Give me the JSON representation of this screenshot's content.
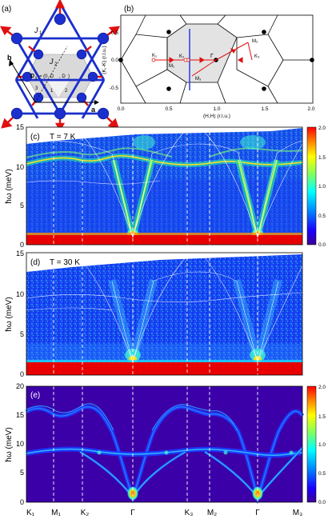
{
  "figure": {
    "a": {
      "label": "(a)",
      "j1": "J",
      "j1_sub": "1",
      "j2": "J",
      "j2_sub": "2",
      "d_ij": "D",
      "d_ij_sub": "ij",
      "d_vec": "= (0, D",
      "d_vec_tail": ", D",
      "d_vec_end": ")",
      "site_1": "1",
      "site_2": "2",
      "site_3": "3",
      "axis_a": "a",
      "axis_b": "b"
    },
    "b": {
      "label": "(b)",
      "xlabel": "(H,H) (r.l.u.)",
      "ylabel": "(K,-K) (r.l.u.)",
      "xticks": [
        "0.0",
        "0.5",
        "1.0",
        "1.5",
        "2.0"
      ],
      "yticks": [
        "0.5",
        "0.0",
        "-0.5"
      ],
      "points": [
        "K₁",
        "M₁",
        "K₂",
        "Γ",
        "M₂",
        "K₃",
        "M₃"
      ]
    },
    "c": {
      "label": "(c)",
      "temp": "T = 7 K",
      "ylabel": "ħω (meV)",
      "yticks": [
        "15",
        "10",
        "5",
        "0"
      ],
      "cbar_ticks": [
        "2.0",
        "1.5",
        "1.0",
        "0.5",
        "0.0"
      ]
    },
    "d": {
      "label": "(d)",
      "temp": "T = 30 K",
      "ylabel": "ħω (meV)",
      "yticks": [
        "15",
        "10",
        "5",
        "0"
      ]
    },
    "e": {
      "label": "(e)",
      "ylabel": "ħω (meV)",
      "yticks": [
        "20",
        "15",
        "10",
        "5",
        "0"
      ],
      "cbar_ticks": [
        "2.0",
        "1.5",
        "1.0",
        "0.5",
        "0.0"
      ],
      "xticks": [
        "K₁",
        "M₁",
        "K₂",
        "Γ",
        "K₃",
        "M₂",
        "Γ",
        "M₃"
      ]
    }
  },
  "chart_data": [
    {
      "type": "heatmap",
      "panel": "c",
      "title": "T = 7 K",
      "ylabel": "ħω (meV)",
      "ylim": [
        0,
        15
      ],
      "x_points": [
        "K₁",
        "M₁",
        "K₂",
        "Γ",
        "K₃",
        "M₂",
        "Γ",
        "M₃"
      ],
      "colorbar": [
        0,
        2
      ],
      "flat_band_meV": 8,
      "upper_band_meV": 10
    },
    {
      "type": "heatmap",
      "panel": "d",
      "title": "T = 30 K",
      "ylabel": "ħω (meV)",
      "ylim": [
        0,
        15
      ],
      "x_points": [
        "K₁",
        "M₁",
        "K₂",
        "Γ",
        "K₃",
        "M₂",
        "Γ",
        "M₃"
      ]
    },
    {
      "type": "heatmap",
      "panel": "e",
      "ylabel": "ħω (meV)",
      "ylim": [
        0,
        20
      ],
      "x_points": [
        "K₁",
        "M₁",
        "K₂",
        "Γ",
        "K₃",
        "M₂",
        "Γ",
        "M₃"
      ],
      "colorbar": [
        0,
        2
      ],
      "flat_band_meV": 8.5,
      "upper_band_max_meV": 17,
      "upper_band_min_meV": 15.5
    }
  ]
}
